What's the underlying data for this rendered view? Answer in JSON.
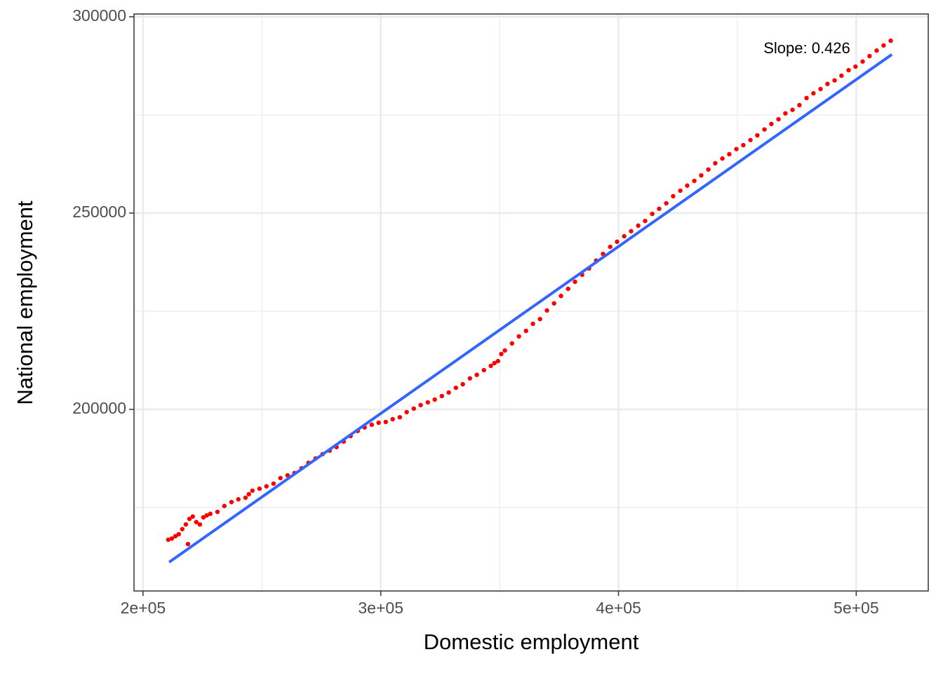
{
  "chart_data": {
    "type": "scatter",
    "x_label": "Domestic employment",
    "y_label": "National employment",
    "annotation": "Slope:  0.426",
    "xlim": [
      196200,
      530300
    ],
    "ylim": [
      153750,
      300700
    ],
    "xticks": [
      {
        "value": 200000,
        "label": "2e+05"
      },
      {
        "value": 300000,
        "label": "3e+05"
      },
      {
        "value": 400000,
        "label": "4e+05"
      },
      {
        "value": 500000,
        "label": "5e+05"
      }
    ],
    "yticks": [
      200000,
      250000,
      300000
    ],
    "x_minor_grid": [
      250000,
      350000,
      450000
    ],
    "y_minor_grid": [
      175000,
      225000,
      275000
    ],
    "grid": true,
    "series": [
      {
        "color": "#ff0000",
        "x": [
          210600,
          212100,
          213600,
          215000,
          216500,
          218000,
          219500,
          220900,
          222400,
          223900,
          218900,
          225400,
          226800,
          228300,
          231300,
          234200,
          237200,
          240100,
          243100,
          244500,
          246000,
          249000,
          251900,
          254900,
          257800,
          260800,
          263700,
          266700,
          269600,
          272600,
          275500,
          278500,
          281400,
          284400,
          287300,
          290300,
          293200,
          296200,
          299100,
          302100,
          305000,
          308000,
          310900,
          313900,
          316800,
          319800,
          322700,
          325700,
          328600,
          331600,
          334500,
          337500,
          340400,
          343400,
          346300,
          347800,
          349300,
          350700,
          352200,
          355200,
          358100,
          361100,
          364000,
          367000,
          369900,
          372900,
          375800,
          378800,
          381700,
          384700,
          387600,
          390600,
          393500,
          396500,
          399400,
          402400,
          405300,
          408300,
          411200,
          414200,
          417100,
          420100,
          423000,
          426000,
          428900,
          431900,
          434800,
          437800,
          440700,
          443700,
          446600,
          449600,
          452500,
          455500,
          458400,
          461400,
          464300,
          467300,
          470200,
          473200,
          476100,
          479100,
          482000,
          485000,
          487900,
          490900,
          493800,
          496800,
          499700,
          502700,
          505600,
          508600,
          511500,
          514500
        ],
        "values": [
          166800,
          167100,
          167700,
          168200,
          169500,
          170700,
          172100,
          172700,
          171300,
          170700,
          165700,
          172500,
          173000,
          173400,
          173900,
          175400,
          176400,
          177100,
          177500,
          178400,
          179300,
          179800,
          180400,
          181100,
          182500,
          183200,
          183800,
          185000,
          186400,
          187500,
          188600,
          189500,
          190400,
          191800,
          193200,
          194500,
          195400,
          196100,
          196600,
          196800,
          197500,
          198000,
          199300,
          200200,
          201100,
          201800,
          202500,
          203400,
          204300,
          205500,
          206400,
          207900,
          208800,
          210000,
          211100,
          211800,
          212300,
          214100,
          215000,
          216800,
          218600,
          220000,
          221800,
          223000,
          225200,
          227000,
          228900,
          230700,
          232500,
          234300,
          235900,
          237900,
          239600,
          241400,
          242700,
          244100,
          245400,
          246800,
          248000,
          249800,
          251100,
          252500,
          254300,
          255700,
          257000,
          258200,
          259600,
          261100,
          262700,
          263900,
          265000,
          266300,
          267300,
          268600,
          269800,
          271300,
          272700,
          273900,
          275400,
          276300,
          277500,
          279300,
          280500,
          281600,
          282900,
          283800,
          285000,
          286400,
          287300,
          288600,
          290000,
          291400,
          292700,
          293900
        ]
      }
    ],
    "fit": {
      "color": "#3366ff",
      "x": [
        211000,
        515000
      ],
      "y": [
        161100,
        290400
      ]
    }
  }
}
